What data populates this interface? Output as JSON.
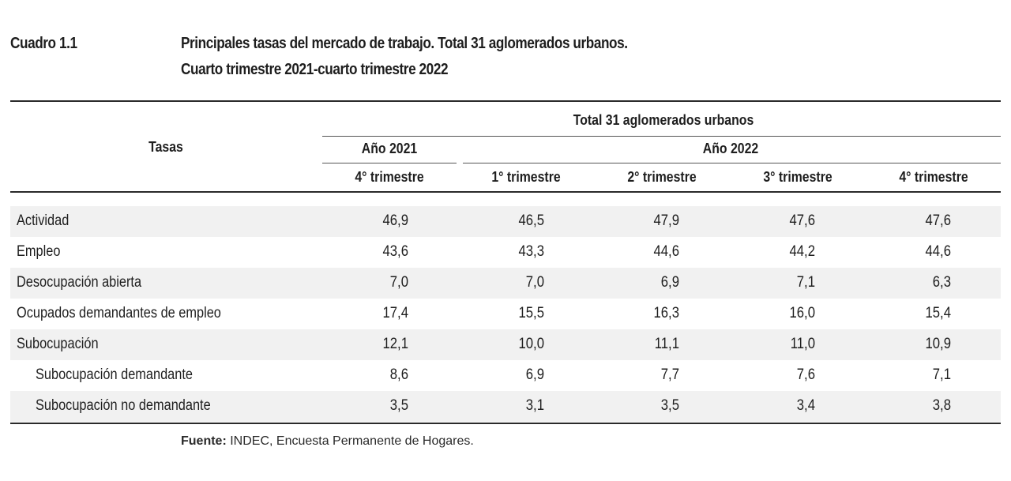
{
  "header": {
    "cuadro": "Cuadro 1.1",
    "title_line1": "Principales tasas del mercado de trabajo. Total 31 aglomerados urbanos.",
    "title_line2": "Cuarto trimestre 2021-cuarto trimestre 2022"
  },
  "table": {
    "col_tasas": "Tasas",
    "group_total": "Total 31 aglomerados urbanos",
    "year_2021": "Año 2021",
    "year_2022": "Año 2022",
    "quarters": [
      "4° trimestre",
      "1° trimestre",
      "2° trimestre",
      "3° trimestre",
      "4° trimestre"
    ],
    "rows": [
      {
        "label": "Actividad",
        "values": [
          "46,9",
          "46,5",
          "47,9",
          "47,6",
          "47,6"
        ]
      },
      {
        "label": "Empleo",
        "values": [
          "43,6",
          "43,3",
          "44,6",
          "44,2",
          "44,6"
        ]
      },
      {
        "label": "Desocupación abierta",
        "values": [
          "7,0",
          "7,0",
          "6,9",
          "7,1",
          "6,3"
        ]
      },
      {
        "label": "Ocupados demandantes de empleo",
        "values": [
          "17,4",
          "15,5",
          "16,3",
          "16,0",
          "15,4"
        ]
      },
      {
        "label": "Subocupación",
        "values": [
          "12,1",
          "10,0",
          "11,1",
          "11,0",
          "10,9"
        ]
      },
      {
        "label": "Subocupación demandante",
        "values": [
          "8,6",
          "6,9",
          "7,7",
          "7,6",
          "7,1"
        ]
      },
      {
        "label": "Subocupación no demandante",
        "values": [
          "3,5",
          "3,1",
          "3,5",
          "3,4",
          "3,8"
        ]
      }
    ]
  },
  "footer": {
    "source_label": "Fuente:",
    "source_text": " INDEC, Encuesta Permanente de Hogares."
  }
}
